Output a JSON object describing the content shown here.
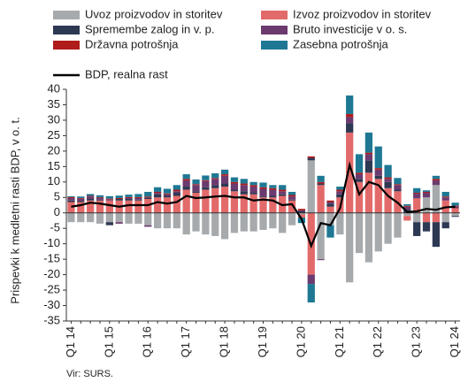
{
  "chart_data": {
    "type": "bar",
    "stacked": true,
    "y_label": "Prispevki k medletni rasti BDP, v o. t.",
    "source": "Vir: SURS.",
    "categories": [
      "Q1 14",
      null,
      null,
      null,
      "Q1 15",
      null,
      null,
      null,
      "Q1 16",
      null,
      null,
      null,
      "Q1 17",
      null,
      null,
      null,
      "Q1 18",
      null,
      null,
      null,
      "Q1 19",
      null,
      null,
      null,
      "Q1 20",
      null,
      null,
      null,
      "Q1 21",
      null,
      null,
      null,
      "Q1 22",
      null,
      null,
      null,
      "Q1 23",
      null,
      null,
      null,
      "Q1 24"
    ],
    "series": [
      {
        "name": "Uvoz proizvodov in storitev",
        "color": "#a7aaad",
        "values": [
          -3,
          -3,
          -3,
          -3.5,
          -3,
          -3,
          -3.5,
          -3.5,
          -4,
          -5,
          -5,
          -5,
          -7,
          -6,
          -7,
          -7.5,
          -8.5,
          -6.5,
          -6,
          -6,
          -5.5,
          -5,
          -6.5,
          -4,
          -0.5,
          17,
          -15,
          -4,
          -7,
          -22.5,
          -13,
          -16,
          -12.5,
          -10,
          -8,
          -1,
          -3,
          5,
          9,
          -3,
          -1
        ]
      },
      {
        "name": "Izvoz proizvodov in storitev",
        "color": "#e36a6a",
        "values": [
          3.5,
          3.5,
          4,
          4,
          4,
          4,
          4,
          4,
          4.5,
          5,
          5,
          5.5,
          7.5,
          6.5,
          7.5,
          8,
          8.5,
          7,
          6,
          6,
          5,
          5,
          5.5,
          4,
          -1,
          -20,
          9,
          2,
          5,
          26,
          10,
          13,
          11,
          8,
          7,
          -1.5,
          4.7,
          -3,
          -3,
          4,
          1.5
        ]
      },
      {
        "name": "Spremembe zalog in v. p.",
        "color": "#2d3853",
        "values": [
          0.5,
          0.3,
          0.5,
          0.3,
          -1,
          0.5,
          0.5,
          0.3,
          0.5,
          1,
          0.5,
          1,
          1,
          0.5,
          0.8,
          1,
          1,
          0.5,
          1,
          0.5,
          0.3,
          0.5,
          0.5,
          0.3,
          0.5,
          0.8,
          0.5,
          1,
          1,
          3,
          1,
          4,
          1,
          2,
          0.5,
          1,
          -4.5,
          -3,
          -8,
          -2,
          -0.3
        ]
      },
      {
        "name": "Bruto investicije v o. s.",
        "color": "#6b3a6e",
        "values": [
          0.8,
          0.8,
          0.8,
          0.6,
          0.3,
          -0.5,
          0.3,
          0.5,
          -0.5,
          0.5,
          0.5,
          0.5,
          2,
          2,
          2,
          2,
          2.5,
          2,
          2,
          2,
          2.5,
          2,
          1,
          1,
          0.3,
          -3,
          -0.3,
          0.5,
          1,
          2,
          1.5,
          2,
          2,
          1,
          1.5,
          1,
          1.5,
          1.5,
          1.5,
          1,
          0.5
        ]
      },
      {
        "name": "Državna potrošnja",
        "color": "#b01b1b",
        "values": [
          0.3,
          0.2,
          0.2,
          0.2,
          0.3,
          0.3,
          0.3,
          0.3,
          0.3,
          0.3,
          0.3,
          0.5,
          0.5,
          0.3,
          0.3,
          0.3,
          0.5,
          0.5,
          0.5,
          0.5,
          0.5,
          0.5,
          0.5,
          0.5,
          0.5,
          0.5,
          0.5,
          0.5,
          0.5,
          1,
          0.5,
          0.5,
          0.5,
          0.5,
          0.3,
          0.3,
          0.3,
          0.3,
          0.5,
          0.3,
          0.3
        ]
      },
      {
        "name": "Zasebna potrošnja",
        "color": "#1e7894",
        "values": [
          0.3,
          0.5,
          0.6,
          0.6,
          0.8,
          0.8,
          0.8,
          1,
          1.5,
          1.5,
          1.5,
          1.5,
          1.5,
          1.5,
          1.5,
          1.5,
          1.5,
          1.5,
          1.5,
          1,
          1.5,
          1,
          1.5,
          1,
          -1.8,
          -6,
          2,
          -4,
          1,
          6,
          6,
          6.5,
          7,
          4,
          2,
          0.5,
          1.5,
          0.5,
          1,
          1.5,
          1
        ]
      }
    ],
    "line": {
      "name": "BDP, realna rast",
      "color": "#000000",
      "values": [
        2,
        2.5,
        3.3,
        3,
        2.5,
        2,
        2.5,
        2.5,
        2.5,
        3.5,
        3,
        3.5,
        5.5,
        4.8,
        5,
        5.3,
        5.5,
        5,
        5,
        4,
        4.3,
        4,
        2.5,
        2.8,
        -2,
        -10.7,
        -3.3,
        -4,
        1.5,
        15.5,
        6,
        10,
        9,
        5.5,
        3.3,
        0.3,
        0.5,
        1.3,
        1,
        1.8,
        2
      ]
    },
    "ylim": [
      -35,
      40
    ],
    "yticks": [
      -35,
      -30,
      -25,
      -20,
      -15,
      -10,
      -5,
      0,
      5,
      10,
      15,
      20,
      25,
      30,
      35,
      40
    ]
  }
}
